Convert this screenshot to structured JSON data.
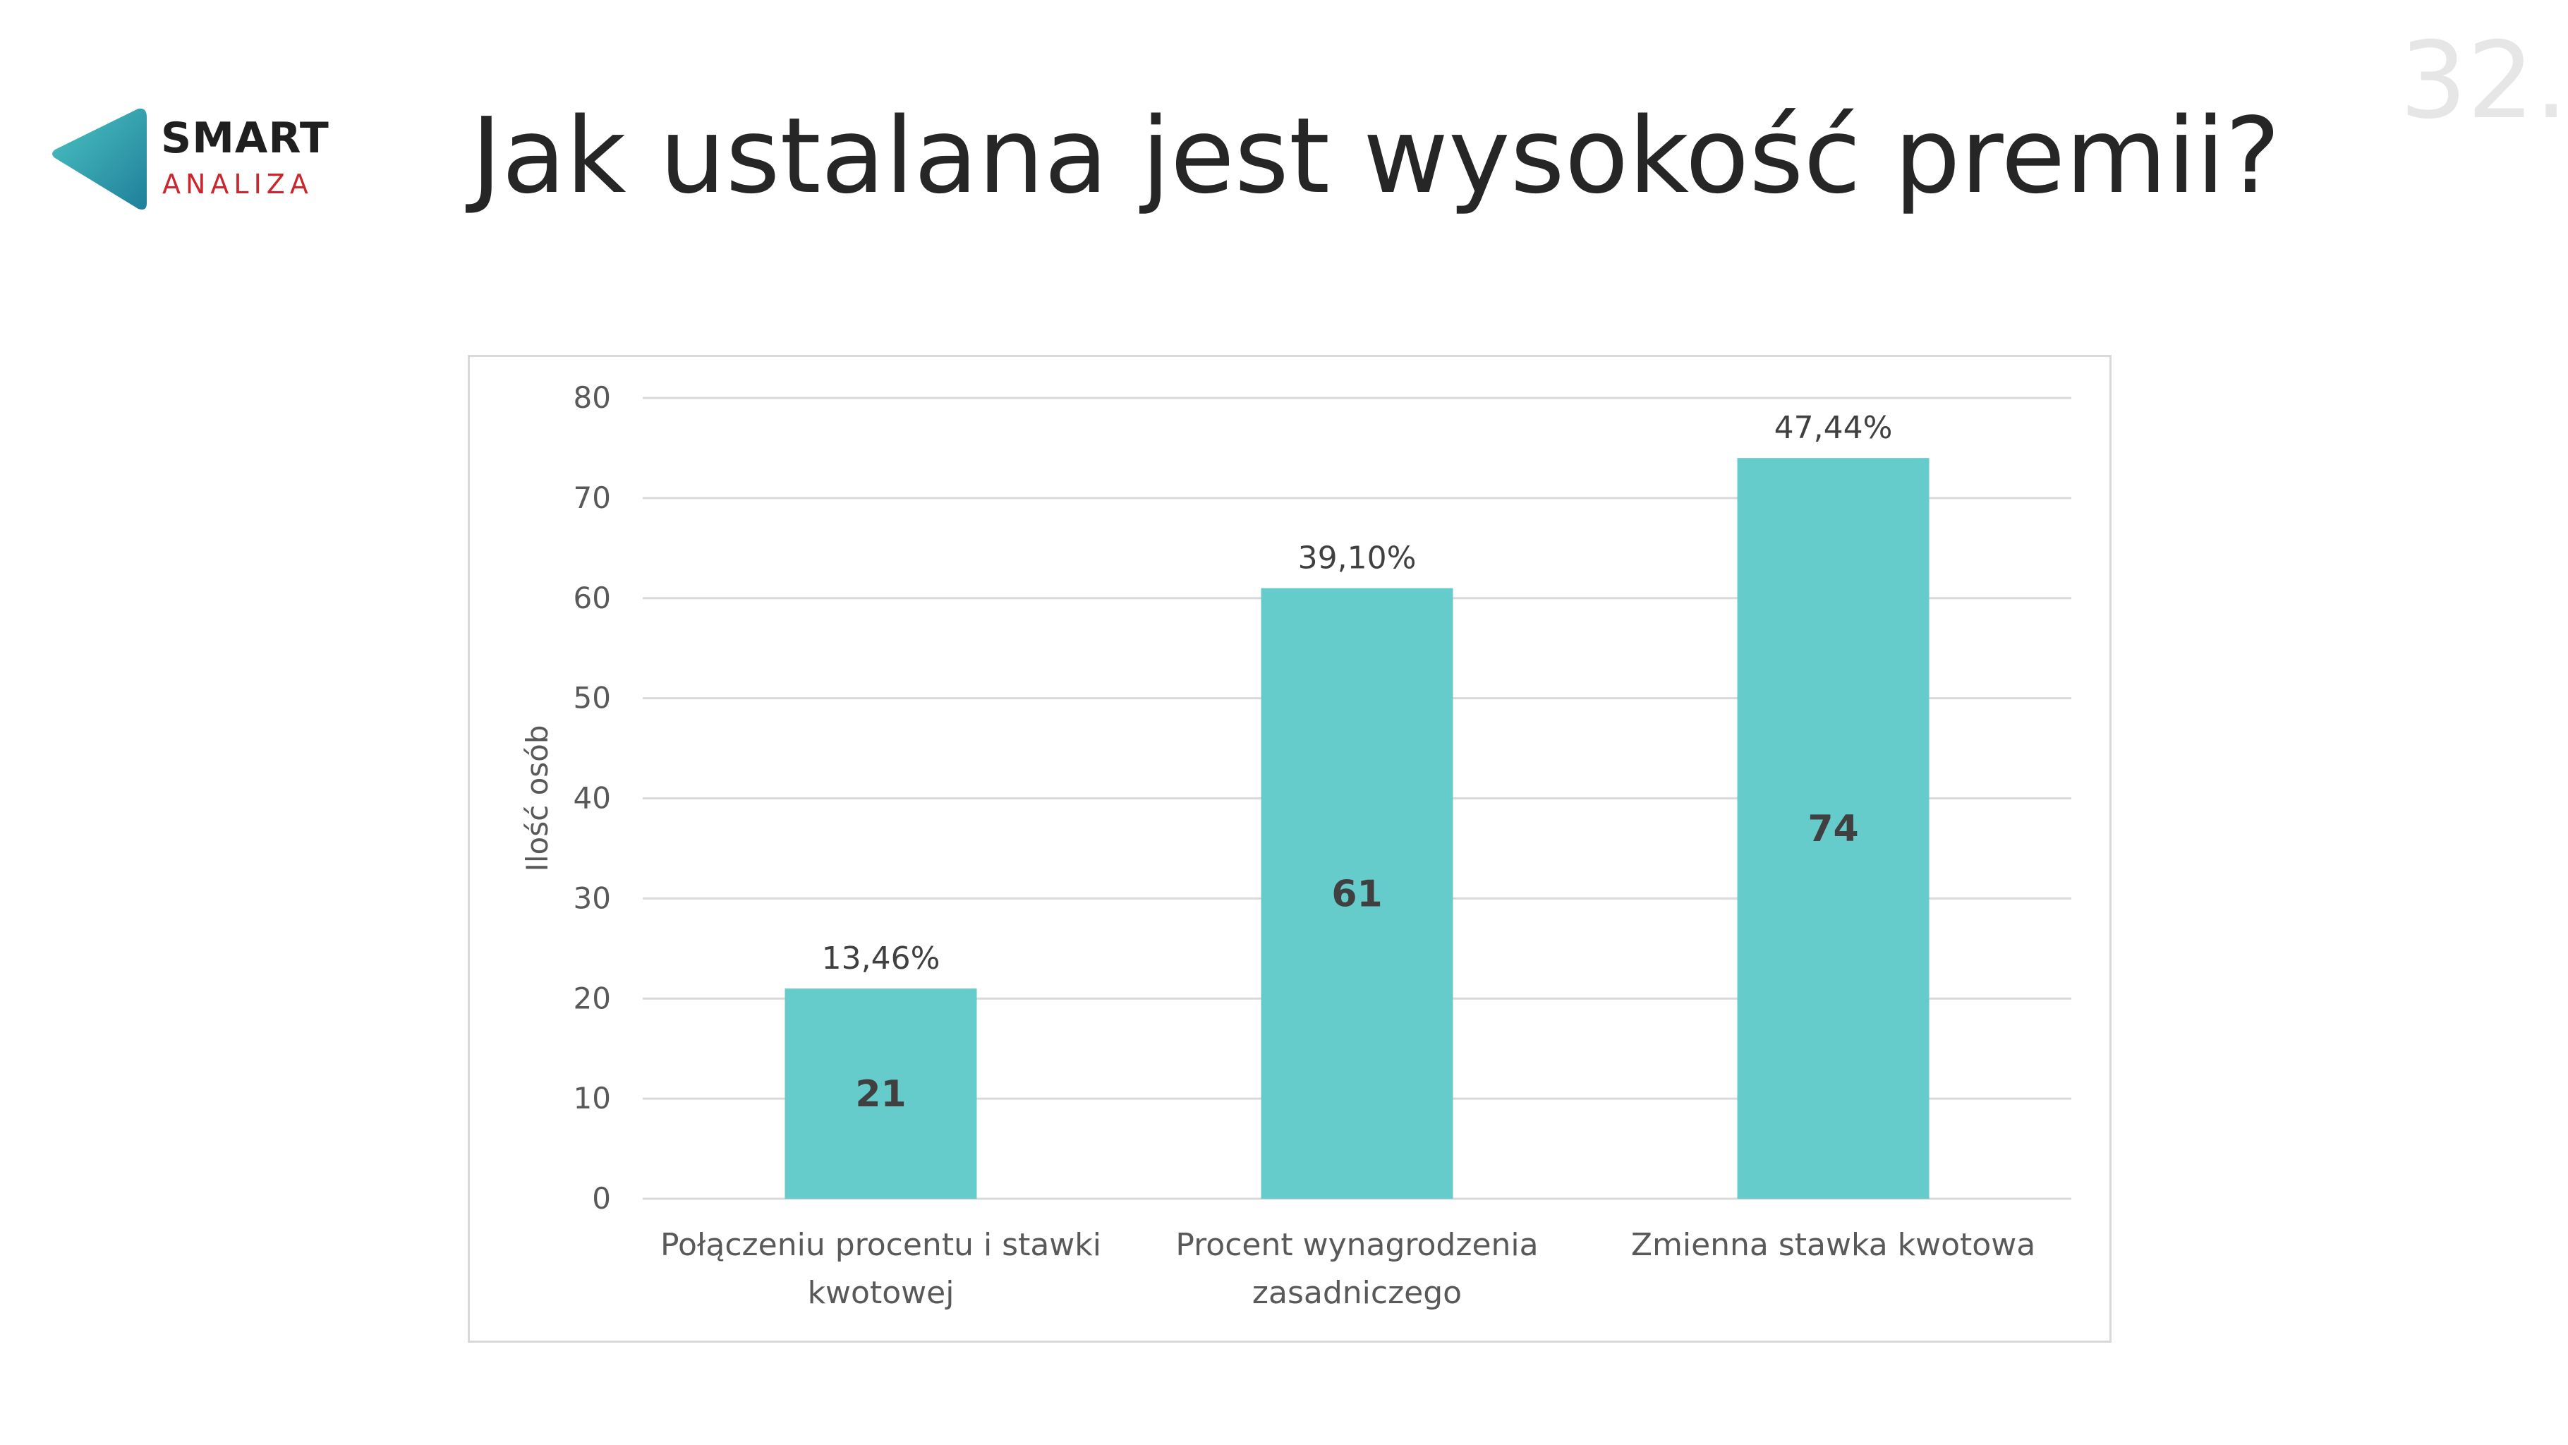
{
  "slide": {
    "title": "Jak ustalana jest wysokość premii?",
    "page_number": "32."
  },
  "logo": {
    "line1": "SMART",
    "line2": "ANALIZA",
    "accent_color": "#2aa7b4",
    "text_accent_color": "#c9262e"
  },
  "chart_data": {
    "type": "bar",
    "categories": [
      [
        "Połączeniu procentu i stawki",
        "kwotowej"
      ],
      [
        "Procent wynagrodzenia",
        "zasadniczego"
      ],
      [
        "Zmienna stawka kwotowa"
      ]
    ],
    "values": [
      21,
      61,
      74
    ],
    "percent_labels": [
      "13,46%",
      "39,10%",
      "47,44%"
    ],
    "title": "",
    "xlabel": "",
    "ylabel": "Ilość osób",
    "ylim": [
      0,
      80
    ],
    "yticks": [
      0,
      10,
      20,
      30,
      40,
      50,
      60,
      70,
      80
    ],
    "grid": true,
    "legend": "none",
    "bar_color": "#65cbcb",
    "grid_color": "#d9d9d9"
  }
}
